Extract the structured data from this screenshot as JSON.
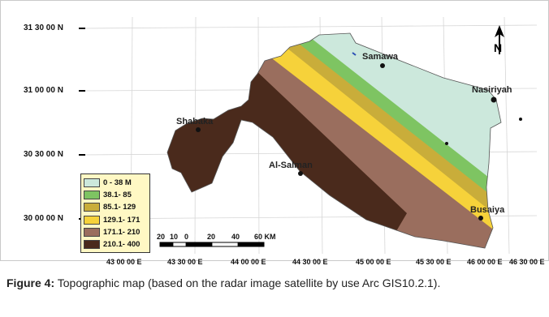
{
  "map": {
    "latitude_labels": [
      "31 30 00 N",
      "31 00 00 N",
      "30 30 00 N",
      "30 00 00 N"
    ],
    "longitude_labels": [
      "43 00 00 E",
      "43 30 00 E",
      "44 00 00 E",
      "44 30 00 E",
      "45 00 00 E",
      "45 30 00 E",
      "46 00 00 E",
      "46 30 00 E"
    ],
    "places": [
      {
        "name": "Samawa"
      },
      {
        "name": "Nasiriyah"
      },
      {
        "name": "Shabaka"
      },
      {
        "name": "Al-Salman"
      },
      {
        "name": "Busaiya"
      }
    ],
    "north_arrow": {
      "label": "N",
      "icon": "north-arrow-icon"
    },
    "legend": [
      {
        "label": "0 - 38 M",
        "color": "#cce8dc"
      },
      {
        "label": "38.1- 85",
        "color": "#7ec462"
      },
      {
        "label": "85.1- 129",
        "color": "#c9ad3a"
      },
      {
        "label": "129.1- 171",
        "color": "#f6d23a"
      },
      {
        "label": "171.1- 210",
        "color": "#9a6e5e"
      },
      {
        "label": "210.1- 400",
        "color": "#4a2a1c"
      }
    ],
    "scale_bar": {
      "ticks": [
        "20",
        "10",
        "0",
        "20",
        "40",
        "60 KM"
      ]
    }
  },
  "caption": {
    "label": "Figure 4:",
    "text": " Topographic map (based on the radar image satellite by use Arc GIS10.2.1)."
  }
}
